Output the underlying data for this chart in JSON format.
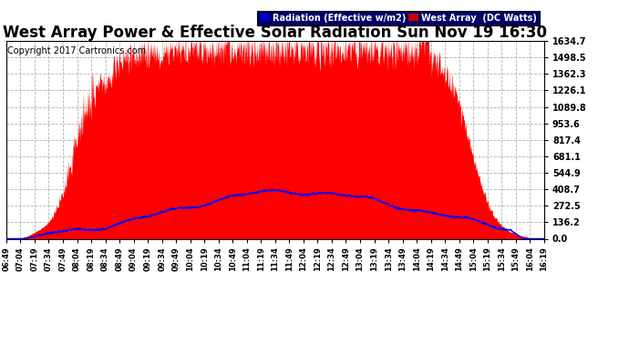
{
  "title": "West Array Power & Effective Solar Radiation Sun Nov 19 16:30",
  "copyright": "Copyright 2017 Cartronics.com",
  "background_color": "#ffffff",
  "plot_bg_color": "#ffffff",
  "grid_color": "#aaaaaa",
  "legend_items": [
    {
      "label": "Radiation (Effective w/m2)",
      "facecolor": "#0000cc",
      "textcolor": "#ffffff"
    },
    {
      "label": "West Array  (DC Watts)",
      "facecolor": "#cc0000",
      "textcolor": "#ffffff"
    }
  ],
  "ymin": 0.0,
  "ymax": 1634.7,
  "yticks": [
    0.0,
    136.2,
    272.5,
    408.7,
    544.9,
    681.1,
    817.4,
    953.6,
    1089.8,
    1226.1,
    1362.3,
    1498.5,
    1634.7
  ],
  "red_color": "#ff0000",
  "blue_color": "#0000ff",
  "title_fontsize": 12,
  "copyright_fontsize": 7
}
